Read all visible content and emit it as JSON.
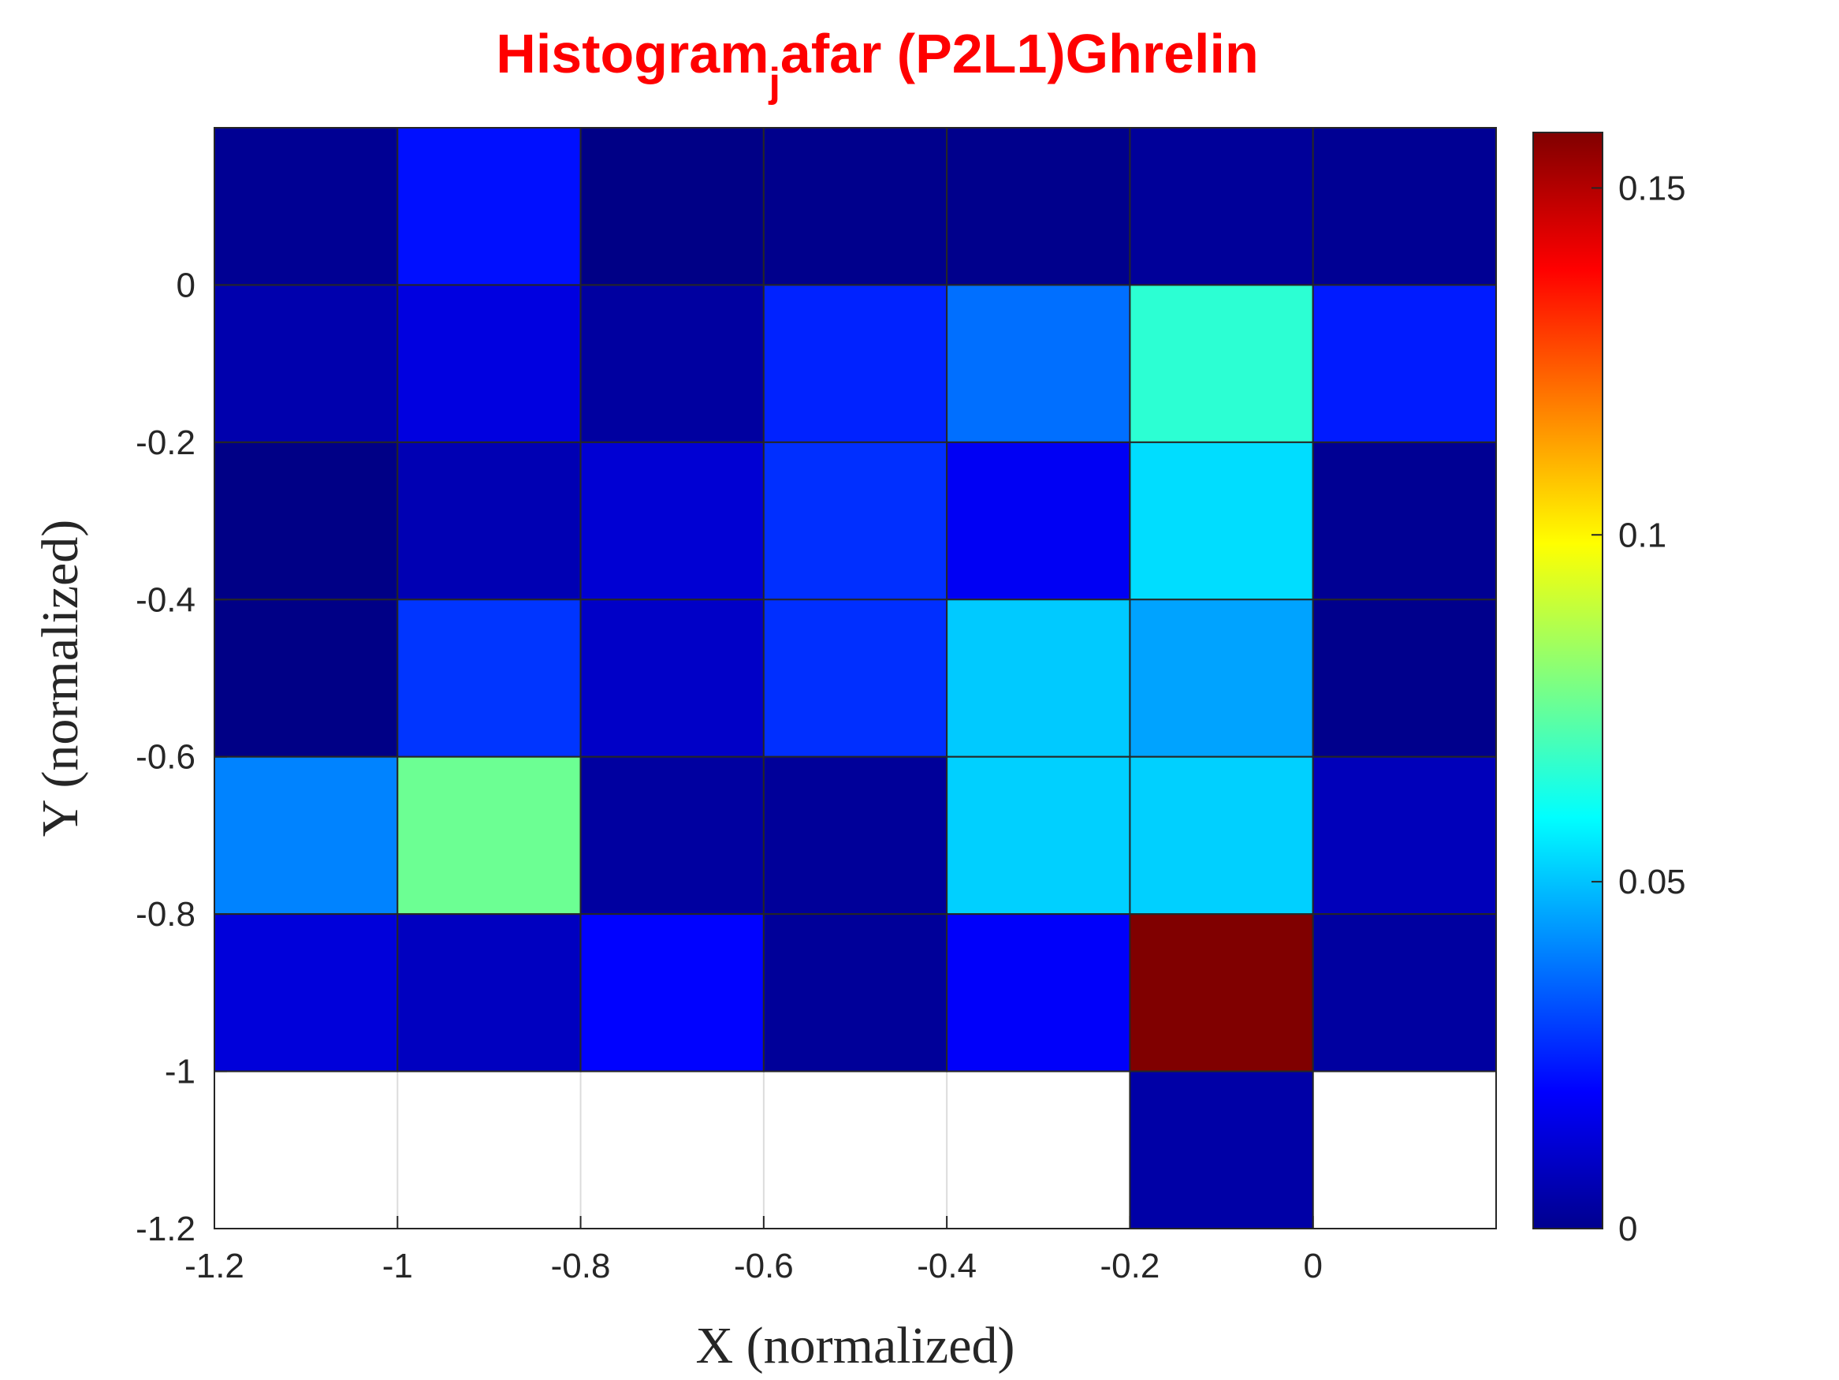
{
  "chart_data": {
    "type": "heatmap",
    "title_parts": [
      "Histogram",
      "j",
      "afar (P2L1)Ghrelin"
    ],
    "xlabel": "X (normalized)",
    "ylabel": "Y (normalized)",
    "xlim": [
      -1.2,
      0.2
    ],
    "ylim": [
      -1.2,
      0.2
    ],
    "x_ticks": [
      -1.2,
      -1,
      -0.8,
      -0.6,
      -0.4,
      -0.2,
      0
    ],
    "x_tick_labels": [
      "-1.2",
      "-1",
      "-0.8",
      "-0.6",
      "-0.4",
      "-0.2",
      "0"
    ],
    "y_ticks": [
      -1.2,
      -1,
      -0.8,
      -0.6,
      -0.4,
      -0.2,
      0
    ],
    "y_tick_labels": [
      "-1.2",
      "-1",
      "-0.8",
      "-0.6",
      "-0.4",
      "-0.2",
      "0"
    ],
    "x_bin_edges": [
      -1.2,
      -1.0,
      -0.8,
      -0.6,
      -0.4,
      -0.2,
      0.0,
      0.2
    ],
    "y_bin_edges": [
      -1.2,
      -1.0,
      -0.8,
      -0.6,
      -0.4,
      -0.2,
      0.0,
      0.2
    ],
    "values_rows_top_to_bottom": [
      [
        0.003,
        0.022,
        0.001,
        0.002,
        0.002,
        0.004,
        0.003
      ],
      [
        0.007,
        0.015,
        0.005,
        0.025,
        0.037,
        0.066,
        0.024
      ],
      [
        0.001,
        0.008,
        0.013,
        0.027,
        0.018,
        0.054,
        0.003
      ],
      [
        0.001,
        0.028,
        0.011,
        0.027,
        0.051,
        0.045,
        0.002
      ],
      [
        0.04,
        0.076,
        0.005,
        0.004,
        0.052,
        0.052,
        0.009
      ],
      [
        0.014,
        0.01,
        0.02,
        0.004,
        0.019,
        0.158,
        0.005
      ],
      [
        null,
        null,
        null,
        null,
        null,
        0.006,
        null
      ]
    ],
    "colormap": "jet",
    "clim": [
      0,
      0.158
    ],
    "colorbar": {
      "ticks": [
        0,
        0.05,
        0.1,
        0.15
      ],
      "tick_labels": [
        "0",
        "0.05",
        "0.1",
        "0.15"
      ],
      "placement": "right"
    },
    "grid": true
  }
}
